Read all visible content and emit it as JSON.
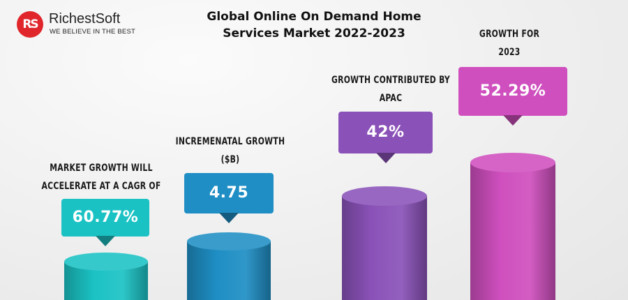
{
  "logo": {
    "mark": "RS",
    "name": "RichestSoft",
    "tagline": "WE BELIEVE IN THE BEST"
  },
  "chart_data": {
    "type": "bar",
    "title": "Global Online On Demand Home Services Market 2022-2023",
    "title_lines": [
      "Global Online On Demand Home",
      "Services Market 2022-2023"
    ],
    "categories": [
      "MARKET GROWTH WILL ACCELERATE AT A CAGR OF",
      "INCREMENATAL GROWTH ($B)",
      "GROWTH CONTRIBUTED BY APAC",
      "GROWTH FOR 2023"
    ],
    "category_lines": [
      [
        "MARKET GROWTH WILL",
        "ACCELERATE AT A CAGR OF"
      ],
      [
        "INCREMENATAL GROWTH",
        "($B)"
      ],
      [
        "GROWTH CONTRIBUTED BY",
        "APAC"
      ],
      [
        "GROWTH FOR",
        "2023"
      ]
    ],
    "values": [
      60.77,
      4.75,
      42,
      52.29
    ],
    "value_labels": [
      "60.77%",
      "4.75",
      "42%",
      "52.29%"
    ],
    "colors": [
      "#1bc2c4",
      "#1e8ec4",
      "#8a52b8",
      "#cf4fbe"
    ],
    "bar_layout": "ascending-step",
    "legend": "none",
    "grid": false
  }
}
